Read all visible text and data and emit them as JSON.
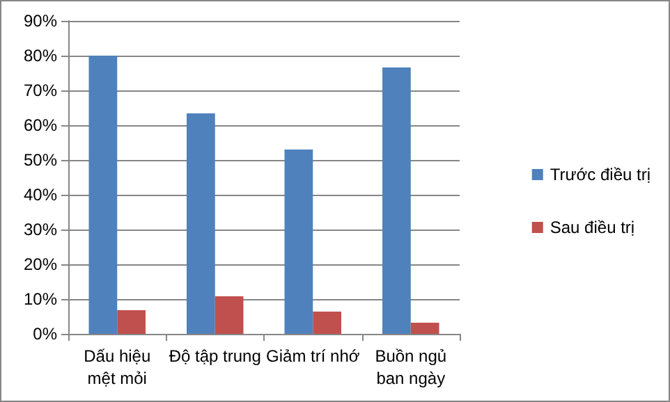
{
  "chart_data": {
    "type": "bar",
    "categories": [
      "Dấu hiệu\nmệt mỏi",
      "Độ tập trung",
      "Giảm trí nhớ",
      "Buồn ngủ\nban ngày"
    ],
    "series": [
      {
        "name": "Trước điều trị",
        "color": "#4f81bd",
        "values": [
          80,
          63.4,
          53,
          76.6
        ]
      },
      {
        "name": "Sau điều trị",
        "color": "#c0504d",
        "values": [
          6.8,
          10.8,
          6.4,
          3.2
        ]
      }
    ],
    "ylim": [
      0,
      90
    ],
    "yticks": [
      {
        "value": 0,
        "label": "0%"
      },
      {
        "value": 10,
        "label": "10%"
      },
      {
        "value": 20,
        "label": "20%"
      },
      {
        "value": 30,
        "label": "30%"
      },
      {
        "value": 40,
        "label": "40%"
      },
      {
        "value": 50,
        "label": "50%"
      },
      {
        "value": 60,
        "label": "60%"
      },
      {
        "value": 70,
        "label": "70%"
      },
      {
        "value": 80,
        "label": "80%"
      },
      {
        "value": 90,
        "label": "90%"
      }
    ],
    "grid": "y",
    "legend": "right"
  }
}
